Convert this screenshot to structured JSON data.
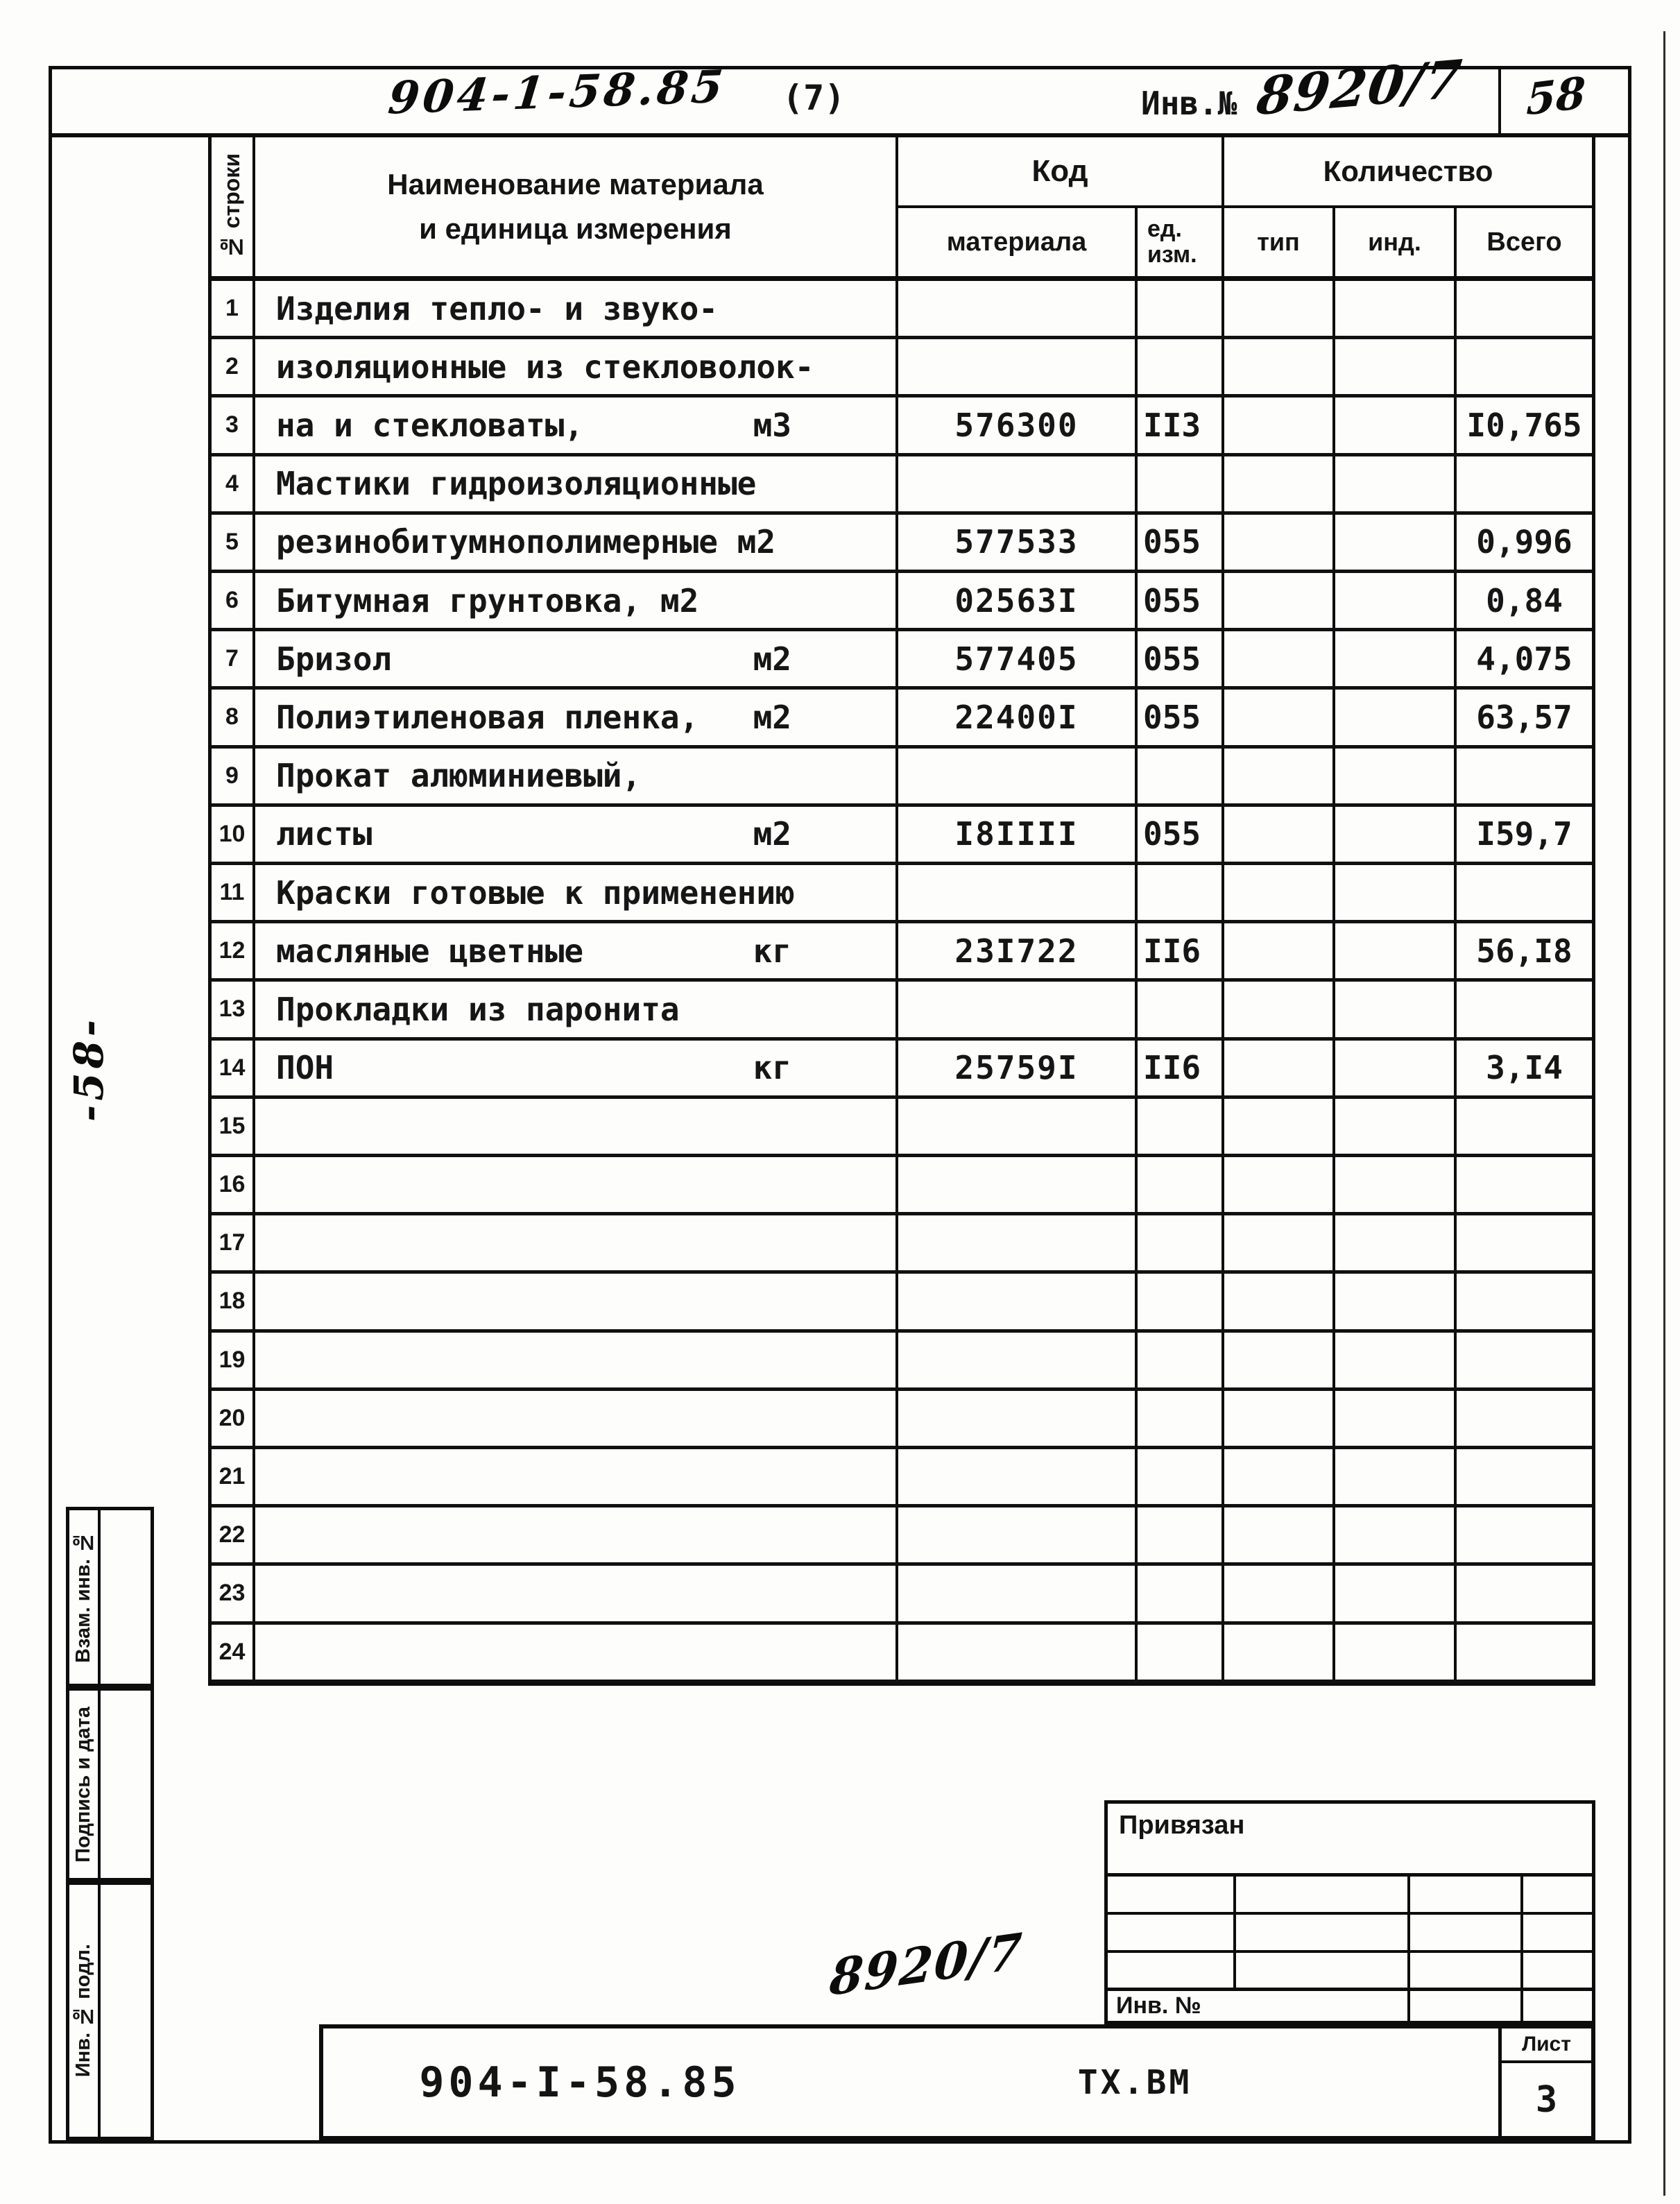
{
  "page": {
    "top_strip": {
      "doc_number": "904-1-58.85",
      "sheet_note": "(7)",
      "inv_label": "Инв.№",
      "inv_number": "8920/7",
      "page_number": "58"
    },
    "margin_note": "-58-"
  },
  "table": {
    "header": {
      "row_label": "№ строки",
      "name_label_1": "Наименование материала",
      "name_label_2": "и единица измерения",
      "code_group": "Код",
      "qty_group": "Количество",
      "code_sub": "материала",
      "unit_sub_1": "ед.",
      "unit_sub_2": "изм.",
      "type_sub": "тип",
      "ind_sub": "инд.",
      "total_sub": "Всего"
    },
    "rows": [
      {
        "num": "1",
        "name": "Изделия тепло- и звуко-",
        "unit": "",
        "code": "",
        "ed": "",
        "type": "",
        "ind": "",
        "total": ""
      },
      {
        "num": "2",
        "name": "изоляционные из стекловолок-",
        "unit": "",
        "code": "",
        "ed": "",
        "type": "",
        "ind": "",
        "total": ""
      },
      {
        "num": "3",
        "name": "на и стекловаты,",
        "unit": "м3",
        "code": "576300",
        "ed": "II3",
        "type": "",
        "ind": "",
        "total": "I0,765"
      },
      {
        "num": "4",
        "name": "Мастики гидроизоляционные",
        "unit": "",
        "code": "",
        "ed": "",
        "type": "",
        "ind": "",
        "total": ""
      },
      {
        "num": "5",
        "name": "резинобитумнополимерные м2",
        "unit": "",
        "code": "577533",
        "ed": "055",
        "type": "",
        "ind": "",
        "total": "0,996"
      },
      {
        "num": "6",
        "name": "Битумная грунтовка, м2",
        "unit": "",
        "code": "02563I",
        "ed": "055",
        "type": "",
        "ind": "",
        "total": "0,84"
      },
      {
        "num": "7",
        "name": "Бризол",
        "unit": "м2",
        "code": "577405",
        "ed": "055",
        "type": "",
        "ind": "",
        "total": "4,075"
      },
      {
        "num": "8",
        "name": "Полиэтиленовая пленка,",
        "unit": "м2",
        "code": "22400I",
        "ed": "055",
        "type": "",
        "ind": "",
        "total": "63,57"
      },
      {
        "num": "9",
        "name": "Прокат алюминиевый,",
        "unit": "",
        "code": "",
        "ed": "",
        "type": "",
        "ind": "",
        "total": ""
      },
      {
        "num": "10",
        "name": "листы",
        "unit": "м2",
        "code": "I8IIII",
        "ed": "055",
        "type": "",
        "ind": "",
        "total": "I59,7"
      },
      {
        "num": "11",
        "name": "Краски готовые к применению",
        "unit": "",
        "code": "",
        "ed": "",
        "type": "",
        "ind": "",
        "total": ""
      },
      {
        "num": "12",
        "name": "масляные цветные",
        "unit": "кг",
        "code": "23I722",
        "ed": "II6",
        "type": "",
        "ind": "",
        "total": "56,I8"
      },
      {
        "num": "13",
        "name": "Прокладки из паронита",
        "unit": "",
        "code": "",
        "ed": "",
        "type": "",
        "ind": "",
        "total": ""
      },
      {
        "num": "14",
        "name": "ПОН",
        "unit": "кг",
        "code": "25759I",
        "ed": "II6",
        "type": "",
        "ind": "",
        "total": "3,I4"
      },
      {
        "num": "15",
        "name": "",
        "unit": "",
        "code": "",
        "ed": "",
        "type": "",
        "ind": "",
        "total": ""
      },
      {
        "num": "16",
        "name": "",
        "unit": "",
        "code": "",
        "ed": "",
        "type": "",
        "ind": "",
        "total": ""
      },
      {
        "num": "17",
        "name": "",
        "unit": "",
        "code": "",
        "ed": "",
        "type": "",
        "ind": "",
        "total": ""
      },
      {
        "num": "18",
        "name": "",
        "unit": "",
        "code": "",
        "ed": "",
        "type": "",
        "ind": "",
        "total": ""
      },
      {
        "num": "19",
        "name": "",
        "unit": "",
        "code": "",
        "ed": "",
        "type": "",
        "ind": "",
        "total": ""
      },
      {
        "num": "20",
        "name": "",
        "unit": "",
        "code": "",
        "ed": "",
        "type": "",
        "ind": "",
        "total": ""
      },
      {
        "num": "21",
        "name": "",
        "unit": "",
        "code": "",
        "ed": "",
        "type": "",
        "ind": "",
        "total": ""
      },
      {
        "num": "22",
        "name": "",
        "unit": "",
        "code": "",
        "ed": "",
        "type": "",
        "ind": "",
        "total": ""
      },
      {
        "num": "23",
        "name": "",
        "unit": "",
        "code": "",
        "ed": "",
        "type": "",
        "ind": "",
        "total": ""
      },
      {
        "num": "24",
        "name": "",
        "unit": "",
        "code": "",
        "ed": "",
        "type": "",
        "ind": "",
        "total": ""
      }
    ]
  },
  "sidebar": {
    "items": [
      {
        "label": "Взам. инв. №"
      },
      {
        "label": "Подпись и дата"
      },
      {
        "label": "Инв. № подл."
      }
    ]
  },
  "bottom": {
    "privyazan_label": "Привязан",
    "inv_label": "Инв. №",
    "handwritten_inv": "8920/7",
    "stamp": {
      "doc_number": "904-I-58.85",
      "dept_code": "ТХ.ВМ",
      "sheet_label": "Лист",
      "sheet_number": "3"
    }
  }
}
